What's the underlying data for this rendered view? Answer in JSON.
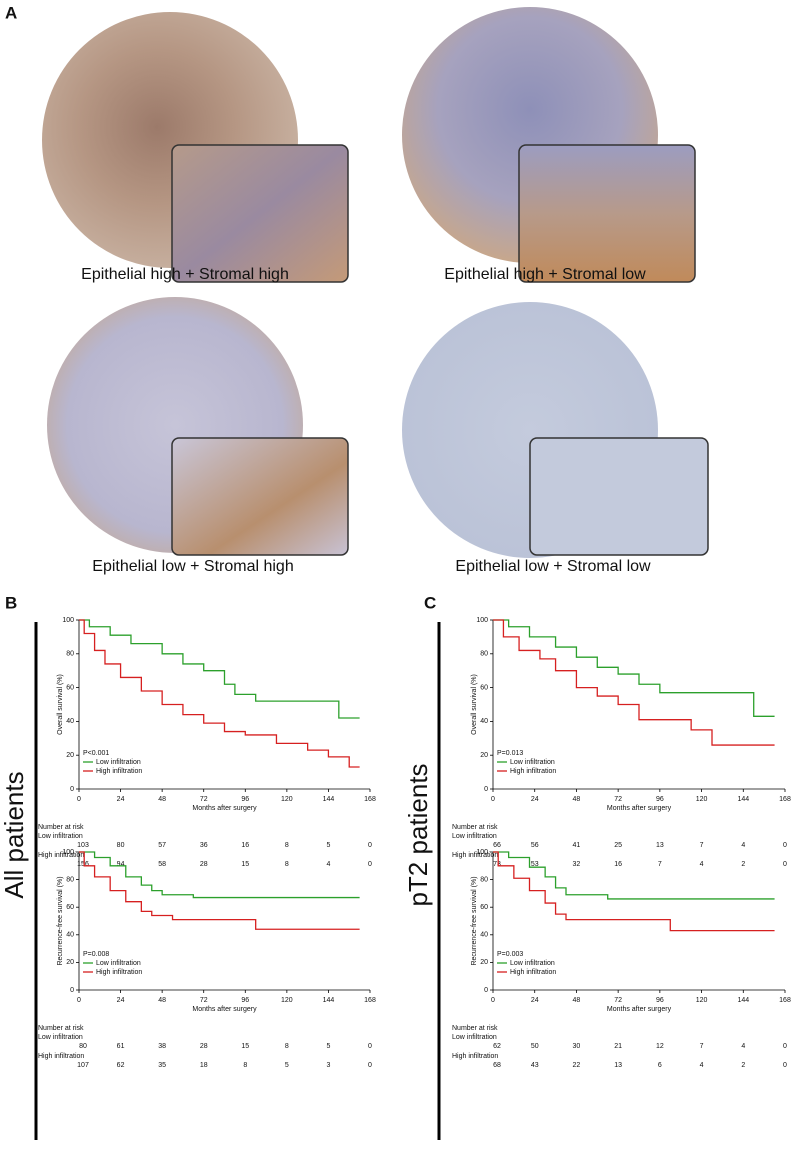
{
  "panel_labels": [
    "A",
    "B",
    "C"
  ],
  "image_captions": [
    "Epithelial high + Stromal high",
    "Epithelial high + Stromal low",
    "Epithelial low + Stromal high",
    "Epithelial low + Stromal low"
  ],
  "group_labels": [
    "All patients",
    "pT2 patients"
  ],
  "chart_data": [
    {
      "type": "line",
      "ylabel": "Overall survival (%)",
      "xlabel": "Months after surgery",
      "annotation": "P<0.001",
      "xlim": [
        0,
        168
      ],
      "xticks": [
        0,
        24,
        48,
        72,
        96,
        120,
        144,
        168
      ],
      "ylim": [
        0,
        100
      ],
      "yticks": [
        0,
        20,
        40,
        60,
        80,
        100
      ],
      "series": [
        {
          "name": "Low infiltration",
          "color": "#2ca02c",
          "x": [
            0,
            6,
            6,
            18,
            18,
            30,
            30,
            48,
            48,
            60,
            60,
            72,
            72,
            84,
            84,
            90,
            90,
            102,
            102,
            150,
            150,
            162
          ],
          "values": [
            100,
            100,
            96,
            96,
            91,
            91,
            86,
            86,
            80,
            80,
            74,
            74,
            70,
            70,
            62,
            62,
            56,
            56,
            52,
            52,
            42,
            42
          ]
        },
        {
          "name": "High infiltration",
          "color": "#d62020",
          "x": [
            0,
            3,
            3,
            9,
            9,
            15,
            15,
            24,
            24,
            36,
            36,
            48,
            48,
            60,
            60,
            72,
            72,
            84,
            84,
            96,
            96,
            114,
            114,
            132,
            132,
            144,
            144,
            156,
            156,
            162
          ],
          "values": [
            100,
            100,
            92,
            92,
            82,
            82,
            74,
            74,
            66,
            66,
            58,
            58,
            50,
            50,
            44,
            44,
            39,
            39,
            34,
            34,
            32,
            32,
            27,
            27,
            23,
            23,
            19,
            19,
            13,
            13
          ]
        }
      ],
      "risk_table": {
        "title": "Number at risk",
        "rows": [
          {
            "name": "Low infiltration",
            "values": [
              103,
              80,
              57,
              36,
              16,
              8,
              5,
              0
            ]
          },
          {
            "name": "High infiltration",
            "values": [
              156,
              94,
              58,
              28,
              15,
              8,
              4,
              0
            ]
          }
        ]
      }
    },
    {
      "type": "line",
      "ylabel": "Recurrence-free survival (%)",
      "xlabel": "Months after surgery",
      "annotation": "P=0.008",
      "xlim": [
        0,
        168
      ],
      "xticks": [
        0,
        24,
        48,
        72,
        96,
        120,
        144,
        168
      ],
      "ylim": [
        0,
        100
      ],
      "yticks": [
        0,
        20,
        40,
        60,
        80,
        100
      ],
      "series": [
        {
          "name": "Low infiltration",
          "color": "#2ca02c",
          "x": [
            0,
            9,
            9,
            18,
            18,
            27,
            27,
            36,
            36,
            42,
            42,
            48,
            48,
            66,
            66,
            162
          ],
          "values": [
            100,
            100,
            96,
            96,
            90,
            90,
            82,
            82,
            76,
            76,
            72,
            72,
            69,
            69,
            67,
            67
          ]
        },
        {
          "name": "High infiltration",
          "color": "#d62020",
          "x": [
            0,
            3,
            3,
            9,
            9,
            18,
            18,
            27,
            27,
            36,
            36,
            42,
            42,
            54,
            54,
            102,
            102,
            162
          ],
          "values": [
            100,
            100,
            90,
            90,
            82,
            82,
            72,
            72,
            64,
            64,
            57,
            57,
            54,
            54,
            51,
            51,
            44,
            44
          ]
        }
      ],
      "risk_table": {
        "title": "Number at risk",
        "rows": [
          {
            "name": "Low infiltration",
            "values": [
              80,
              61,
              38,
              28,
              15,
              8,
              5,
              0
            ]
          },
          {
            "name": "High infiltration",
            "values": [
              107,
              62,
              35,
              18,
              8,
              5,
              3,
              0
            ]
          }
        ]
      }
    },
    {
      "type": "line",
      "ylabel": "Overall survival (%)",
      "xlabel": "Months after surgery",
      "annotation": "P=0.013",
      "xlim": [
        0,
        168
      ],
      "xticks": [
        0,
        24,
        48,
        72,
        96,
        120,
        144,
        168
      ],
      "ylim": [
        0,
        100
      ],
      "yticks": [
        0,
        20,
        40,
        60,
        80,
        100
      ],
      "series": [
        {
          "name": "Low infiltration",
          "color": "#2ca02c",
          "x": [
            0,
            9,
            9,
            21,
            21,
            36,
            36,
            48,
            48,
            60,
            60,
            72,
            72,
            84,
            84,
            96,
            96,
            150,
            150,
            162
          ],
          "values": [
            100,
            100,
            96,
            96,
            90,
            90,
            84,
            84,
            78,
            78,
            72,
            72,
            68,
            68,
            62,
            62,
            57,
            57,
            43,
            43
          ]
        },
        {
          "name": "High infiltration",
          "color": "#d62020",
          "x": [
            0,
            6,
            6,
            15,
            15,
            27,
            27,
            36,
            36,
            48,
            48,
            60,
            60,
            72,
            72,
            84,
            84,
            114,
            114,
            126,
            126,
            162
          ],
          "values": [
            100,
            100,
            90,
            90,
            82,
            82,
            77,
            77,
            70,
            70,
            60,
            60,
            55,
            55,
            50,
            50,
            41,
            41,
            35,
            35,
            26,
            26
          ]
        }
      ],
      "risk_table": {
        "title": "Number at risk",
        "rows": [
          {
            "name": "Low infiltration",
            "values": [
              66,
              56,
              41,
              25,
              13,
              7,
              4,
              0
            ]
          },
          {
            "name": "High infiltration",
            "values": [
              73,
              53,
              32,
              16,
              7,
              4,
              2,
              0
            ]
          }
        ]
      }
    },
    {
      "type": "line",
      "ylabel": "Recurrence-free survival (%)",
      "xlabel": "Months after surgery",
      "annotation": "P=0.003",
      "xlim": [
        0,
        168
      ],
      "xticks": [
        0,
        24,
        48,
        72,
        96,
        120,
        144,
        168
      ],
      "ylim": [
        0,
        100
      ],
      "yticks": [
        0,
        20,
        40,
        60,
        80,
        100
      ],
      "series": [
        {
          "name": "Low infiltration",
          "color": "#2ca02c",
          "x": [
            0,
            9,
            9,
            21,
            21,
            30,
            30,
            36,
            36,
            42,
            42,
            66,
            66,
            162
          ],
          "values": [
            100,
            100,
            96,
            96,
            89,
            89,
            82,
            82,
            74,
            74,
            69,
            69,
            66,
            66
          ]
        },
        {
          "name": "High infiltration",
          "color": "#d62020",
          "x": [
            0,
            3,
            3,
            12,
            12,
            21,
            21,
            30,
            30,
            36,
            36,
            42,
            42,
            102,
            102,
            162
          ],
          "values": [
            100,
            100,
            90,
            90,
            81,
            81,
            72,
            72,
            63,
            63,
            55,
            55,
            51,
            51,
            43,
            43
          ]
        }
      ],
      "risk_table": {
        "title": "Number at risk",
        "rows": [
          {
            "name": "Low infiltration",
            "values": [
              62,
              50,
              30,
              21,
              12,
              7,
              4,
              0
            ]
          },
          {
            "name": "High infiltration",
            "values": [
              68,
              43,
              22,
              13,
              6,
              4,
              2,
              0
            ]
          }
        ]
      }
    }
  ]
}
